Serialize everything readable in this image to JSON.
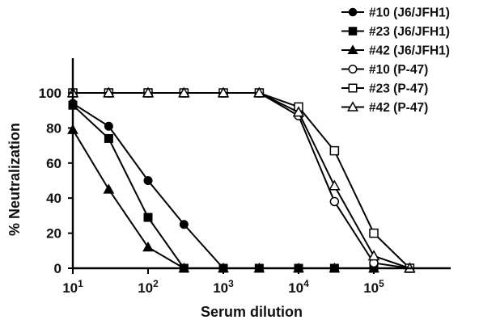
{
  "chart_data": {
    "type": "line",
    "xscale": "log10",
    "xlabel": "Serum dilution",
    "ylabel": "% Neutralization",
    "xlim": [
      10,
      1000000
    ],
    "ylim": [
      0,
      100
    ],
    "yticks": [
      0,
      20,
      40,
      60,
      80,
      100
    ],
    "xticks": [
      {
        "value": 10,
        "base": "10",
        "exp": "1"
      },
      {
        "value": 100,
        "base": "10",
        "exp": "2"
      },
      {
        "value": 1000,
        "base": "10",
        "exp": "3"
      },
      {
        "value": 10000,
        "base": "10",
        "exp": "4"
      },
      {
        "value": 100000,
        "base": "10",
        "exp": "5"
      }
    ],
    "legend_position": "top-right",
    "series": [
      {
        "name": "#10 (J6/JFH1)",
        "marker": "circle",
        "filled": true,
        "x": [
          10,
          30,
          100,
          300,
          1000,
          3000,
          10000,
          30000,
          100000,
          300000
        ],
        "y": [
          94,
          81,
          50,
          25,
          0,
          0,
          0,
          0,
          0,
          0
        ]
      },
      {
        "name": "#23 (J6/JFH1)",
        "marker": "square",
        "filled": true,
        "x": [
          10,
          30,
          100,
          300,
          1000,
          3000,
          10000,
          30000,
          100000,
          300000
        ],
        "y": [
          93,
          74,
          29,
          0,
          0,
          0,
          0,
          0,
          0,
          0
        ]
      },
      {
        "name": "#42 (J6/JFH1)",
        "marker": "triangle",
        "filled": true,
        "x": [
          10,
          30,
          100,
          300,
          1000,
          3000,
          10000,
          30000,
          100000,
          300000
        ],
        "y": [
          79,
          45,
          12,
          0,
          0,
          0,
          0,
          0,
          0,
          0
        ]
      },
      {
        "name": "#10 (P-47)",
        "marker": "circle",
        "filled": false,
        "x": [
          10,
          30,
          100,
          300,
          1000,
          3000,
          10000,
          30000,
          100000,
          300000
        ],
        "y": [
          100,
          100,
          100,
          100,
          100,
          100,
          87,
          38,
          3,
          0
        ]
      },
      {
        "name": "#23 (P-47)",
        "marker": "square",
        "filled": false,
        "x": [
          10,
          30,
          100,
          300,
          1000,
          3000,
          10000,
          30000,
          100000,
          300000
        ],
        "y": [
          100,
          100,
          100,
          100,
          100,
          100,
          92,
          67,
          20,
          0
        ]
      },
      {
        "name": "#42 (P-47)",
        "marker": "triangle",
        "filled": false,
        "x": [
          10,
          30,
          100,
          300,
          1000,
          3000,
          10000,
          30000,
          100000,
          300000
        ],
        "y": [
          100,
          100,
          100,
          100,
          100,
          100,
          89,
          47,
          7,
          0
        ]
      }
    ]
  }
}
